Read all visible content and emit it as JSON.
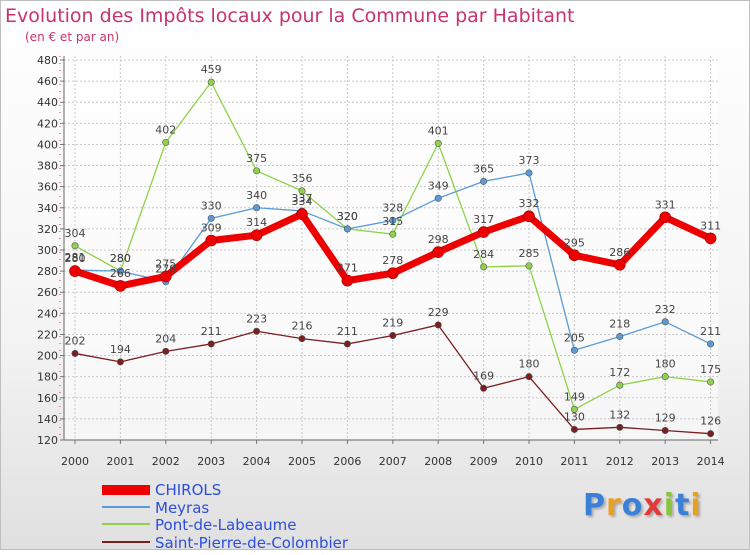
{
  "chart_data": {
    "type": "line",
    "title": "Evolution des Impôts locaux pour la Commune par Habitant",
    "subtitle": "(en € et par an)",
    "xlabel": "",
    "ylabel": "",
    "categories": [
      "2000",
      "2001",
      "2002",
      "2003",
      "2004",
      "2005",
      "2006",
      "2007",
      "2008",
      "2009",
      "2010",
      "2011",
      "2012",
      "2013",
      "2014"
    ],
    "ylim": [
      120,
      480
    ],
    "yticks": [
      120,
      140,
      160,
      180,
      200,
      220,
      240,
      260,
      280,
      300,
      320,
      340,
      360,
      380,
      400,
      420,
      440,
      460,
      480
    ],
    "grid": true,
    "legend_position": "bottom-left",
    "series": [
      {
        "name": "CHIROLS",
        "color": "#ee0000",
        "values": [
          280,
          266,
          275,
          309,
          314,
          334,
          271,
          278,
          298,
          317,
          332,
          295,
          286,
          331,
          311
        ]
      },
      {
        "name": "Meyras",
        "color": "#5b9bd5",
        "values": [
          281,
          280,
          270,
          330,
          340,
          337,
          320,
          328,
          349,
          365,
          373,
          205,
          218,
          232,
          211
        ]
      },
      {
        "name": "Pont-de-Labeaume",
        "color": "#8fd24a",
        "values": [
          304,
          280,
          402,
          459,
          375,
          356,
          320,
          315,
          401,
          284,
          285,
          149,
          172,
          180,
          175
        ]
      },
      {
        "name": "Saint-Pierre-de-Colombier",
        "color": "#7a1f1f",
        "values": [
          202,
          194,
          204,
          211,
          223,
          216,
          211,
          219,
          229,
          169,
          180,
          130,
          132,
          129,
          126
        ]
      }
    ]
  },
  "logo": {
    "text": "Proxiti",
    "colors": [
      "#3a7fd8",
      "#e8a020",
      "#3a7fd8",
      "#e03a3a",
      "#8ac43a",
      "#3a7fd8",
      "#e8a020"
    ]
  }
}
